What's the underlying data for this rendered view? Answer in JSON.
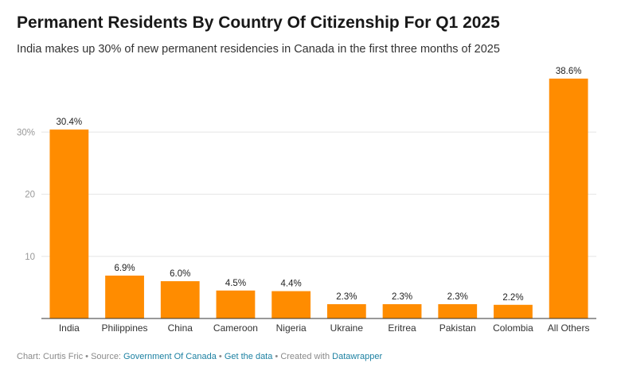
{
  "title": "Permanent Residents By Country Of Citizenship For Q1 2025",
  "subtitle": "India makes up 30% of new permanent residencies in Canada in the first three months of 2025",
  "footer": {
    "prefix": "Chart: Curtis Fric • Source: ",
    "source_link": "Government Of Canada",
    "sep1": " • ",
    "data_link": "Get the data",
    "sep2": " • Created with ",
    "tool_link": "Datawrapper"
  },
  "colors": {
    "bar": "#ff8c00",
    "grid": "#e6e6e6",
    "axis": "#333333",
    "tick_text": "#999999",
    "link": "#1d81a2"
  },
  "chart_data": {
    "type": "bar",
    "title": "",
    "xlabel": "",
    "ylabel": "",
    "categories": [
      "India",
      "Philippines",
      "China",
      "Cameroon",
      "Nigeria",
      "Ukraine",
      "Eritrea",
      "Pakistan",
      "Colombia",
      "All Others"
    ],
    "values": [
      30.4,
      6.9,
      6.0,
      4.5,
      4.4,
      2.3,
      2.3,
      2.3,
      2.2,
      38.6
    ],
    "value_labels": [
      "30.4%",
      "6.9%",
      "6.0%",
      "4.5%",
      "4.4%",
      "2.3%",
      "2.3%",
      "2.3%",
      "2.2%",
      "38.6%"
    ],
    "ylim": [
      0,
      40
    ],
    "yticks": [
      10,
      20,
      30
    ],
    "ytick_labels": [
      "10",
      "20",
      "30%"
    ],
    "grid": true,
    "legend": "none"
  }
}
